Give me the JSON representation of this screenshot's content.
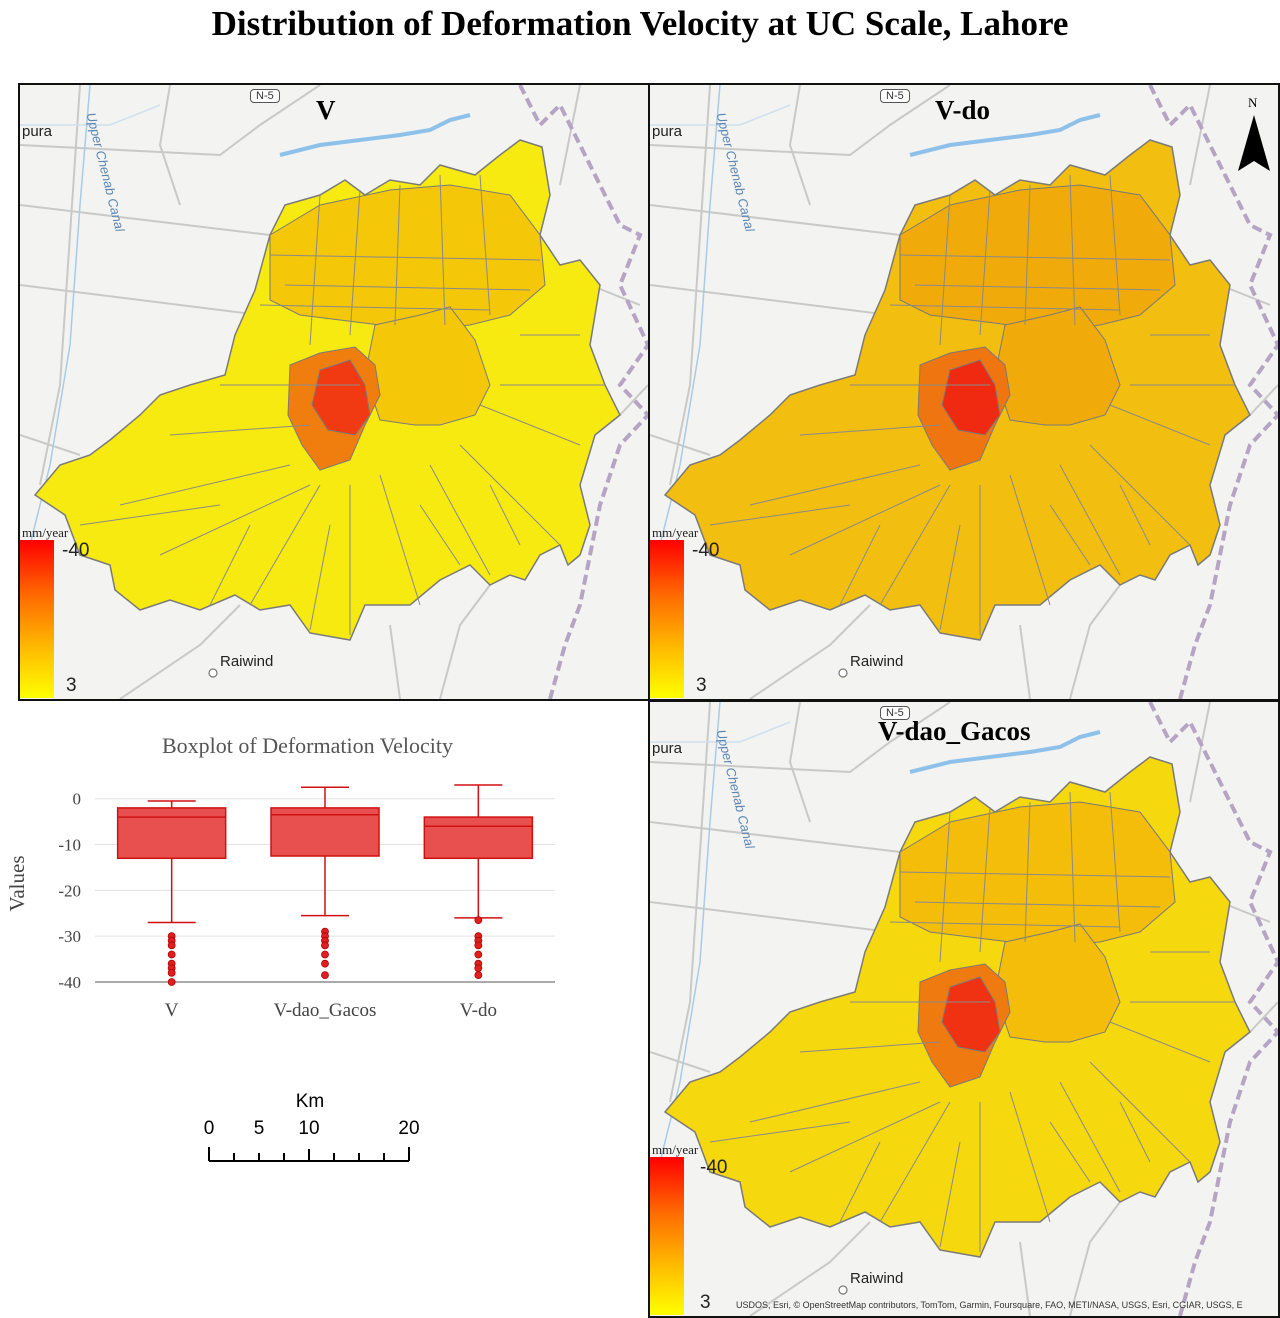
{
  "title": "Distribution of Deformation Velocity at UC Scale, Lahore",
  "maps": [
    {
      "id": "V",
      "title": "V",
      "fill_main": "#f7ea10",
      "fill_mid": "#f4c708",
      "fill_core": "#f07e0e",
      "fill_hot": "#f23a12"
    },
    {
      "id": "V-do",
      "title": "V-do",
      "fill_main": "#f2be10",
      "fill_mid": "#f0aa0a",
      "fill_core": "#ee7510",
      "fill_hot": "#f02a10"
    },
    {
      "id": "V-dao_Gacos",
      "title": "V-dao_Gacos",
      "fill_main": "#f5d80e",
      "fill_mid": "#f3bd0a",
      "fill_core": "#ef7a10",
      "fill_hot": "#f03212"
    }
  ],
  "base_labels": {
    "town_left": "pura",
    "town_bottom": "Raiwind",
    "canal": "Upper Chenab Canal",
    "highway": "N-5"
  },
  "legend": {
    "unit": "mm/year",
    "max_label": "-40",
    "min_label": "3"
  },
  "north_arrow": {
    "label": "N"
  },
  "attribution": "USDOS, Esri, © OpenStreetMap contributors, TomTom, Garmin, Foursquare, FAO, METI/NASA, USGS, Esri, CGIAR, USGS, E",
  "scale_bar": {
    "unit": "Km",
    "ticks": [
      "0",
      "5",
      "10",
      "20"
    ]
  },
  "chart_data": {
    "type": "boxplot",
    "title": "Boxplot of Deformation Velocity",
    "ylabel": "Values",
    "ylim": [
      -40,
      3
    ],
    "yticks": [
      0,
      -10,
      -20,
      -30,
      -40
    ],
    "categories": [
      "V",
      "V-dao_Gacos",
      "V-do"
    ],
    "series": [
      {
        "name": "V",
        "min": -27,
        "q1": -13,
        "median": -4,
        "q3": -2,
        "max": -0.5,
        "outliers": [
          -30,
          -31,
          -32,
          -34,
          -36,
          -37,
          -38,
          -40
        ]
      },
      {
        "name": "V-dao_Gacos",
        "min": -25.5,
        "q1": -12.5,
        "median": -3.5,
        "q3": -2,
        "max": 2.5,
        "outliers": [
          -29,
          -30,
          -31,
          -32,
          -34,
          -36,
          -38.5
        ]
      },
      {
        "name": "V-do",
        "min": -26,
        "q1": -13,
        "median": -6,
        "q3": -4,
        "max": 3,
        "outliers": [
          -26.5,
          -30,
          -31,
          -32,
          -34,
          -36,
          -37,
          -38.5
        ]
      }
    ],
    "box_color": "#e85050",
    "edge_color": "#d01010"
  }
}
